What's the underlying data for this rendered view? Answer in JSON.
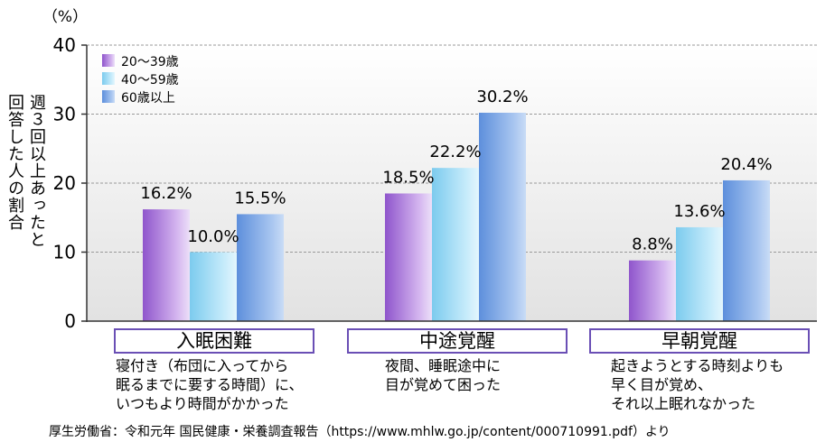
{
  "chart_data": {
    "type": "bar",
    "title": "",
    "unit_label": "（%）",
    "ylabel_lines": [
      "週３回以上あったと",
      "回答した人の割合"
    ],
    "ylim": [
      0,
      40
    ],
    "yticks": [
      0,
      10,
      20,
      30,
      40
    ],
    "grid": true,
    "legend_position": "top-left",
    "categories": [
      "入眠困難",
      "中途覚醒",
      "早朝覚醒"
    ],
    "category_descriptions": [
      "寝付き（布団に入ってから\n眠るまでに要する時間）に、\nいつもより時間がかかった",
      "夜間、睡眠途中に\n目が覚めて困った",
      "起きようとする時刻よりも\n早く目が覚め、\nそれ以上眠れなかった"
    ],
    "series": [
      {
        "name": "20～39歳",
        "values": [
          16.2,
          18.5,
          8.8
        ],
        "labels": [
          "16.2%",
          "18.5%",
          "8.8%"
        ],
        "color": "#a873d8"
      },
      {
        "name": "40～59歳",
        "values": [
          10.0,
          22.2,
          13.6
        ],
        "labels": [
          "10.0%",
          "22.2%",
          "13.6%"
        ],
        "color": "#9ad8f2"
      },
      {
        "name": "60歳以上",
        "values": [
          15.5,
          30.2,
          20.4
        ],
        "labels": [
          "15.5%",
          "30.2%",
          "20.4%"
        ],
        "color": "#7fa8e4"
      }
    ],
    "colors": {
      "box_border": "#6a4fb5",
      "plot_bg_top": "#ffffff",
      "plot_bg_bottom": "#e2e2e2"
    }
  },
  "source": "厚生労働省：令和元年 国民健康・栄養調査報告（https://www.mhlw.go.jp/content/000710991.pdf）より"
}
